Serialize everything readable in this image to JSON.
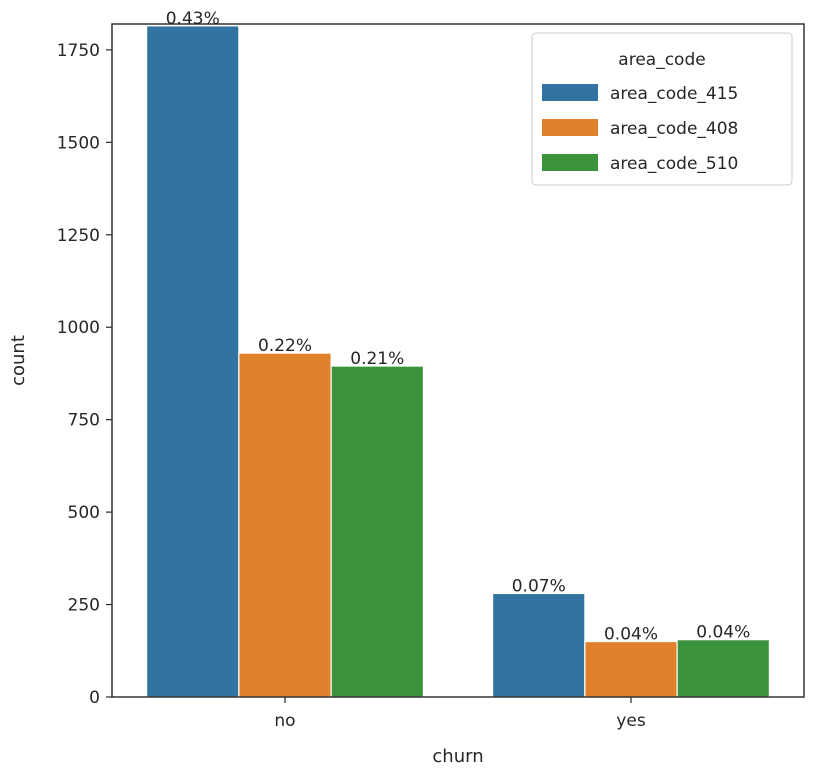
{
  "chart_data": {
    "type": "bar",
    "title": "",
    "xlabel": "churn",
    "ylabel": "count",
    "categories": [
      "no",
      "yes"
    ],
    "ylim": [
      0,
      1820
    ],
    "yticks": [
      0,
      250,
      500,
      750,
      1000,
      1250,
      1500,
      1750
    ],
    "grid": false,
    "legend": {
      "title": "area_code",
      "placement": "top-right"
    },
    "series": [
      {
        "name": "area_code_415",
        "color": "#3274a1",
        "values": [
          1815,
          280
        ],
        "labels": [
          "0.43%",
          "0.07%"
        ]
      },
      {
        "name": "area_code_408",
        "color": "#e1812c",
        "values": [
          930,
          150
        ],
        "labels": [
          "0.22%",
          "0.04%"
        ]
      },
      {
        "name": "area_code_510",
        "color": "#3a923a",
        "values": [
          895,
          155
        ],
        "labels": [
          "0.21%",
          "0.04%"
        ]
      }
    ]
  }
}
